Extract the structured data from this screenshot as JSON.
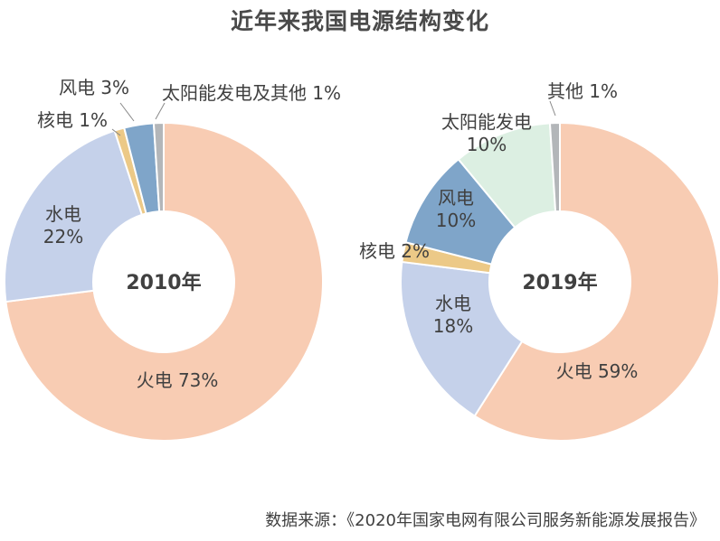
{
  "title": "近年来我国电源结构变化",
  "source": "数据来源：《2020年国家电网有限公司服务新能源发展报告》",
  "chart_data": [
    {
      "type": "pie",
      "center_label": "2010年",
      "slices": [
        {
          "name": "火电",
          "value": 73,
          "label": "火电  73%",
          "color": "#f8ccb3"
        },
        {
          "name": "水电",
          "value": 22,
          "label": "水电\n22%",
          "color": "#c5d1ea"
        },
        {
          "name": "核电",
          "value": 1,
          "label": "核电  1%",
          "color": "#ecc987"
        },
        {
          "name": "风电",
          "value": 3,
          "label": "风电  3%",
          "color": "#7fa5c9"
        },
        {
          "name": "太阳能发电及其他",
          "value": 1,
          "label": "太阳能发电及其他  1%",
          "color": "#b3b6b9"
        }
      ]
    },
    {
      "type": "pie",
      "center_label": "2019年",
      "slices": [
        {
          "name": "火电",
          "value": 59,
          "label": "火电  59%",
          "color": "#f8ccb3"
        },
        {
          "name": "水电",
          "value": 18,
          "label": "水电\n18%",
          "color": "#c5d1ea"
        },
        {
          "name": "核电",
          "value": 2,
          "label": "核电  2%",
          "color": "#ecc987"
        },
        {
          "name": "风电",
          "value": 10,
          "label": "风电\n10%",
          "color": "#7fa5c9"
        },
        {
          "name": "太阳能发电",
          "value": 10,
          "label": "太阳能发电\n10%",
          "color": "#dcefe2"
        },
        {
          "name": "其他",
          "value": 1,
          "label": "其他  1%",
          "color": "#b3b6b9"
        }
      ]
    }
  ]
}
